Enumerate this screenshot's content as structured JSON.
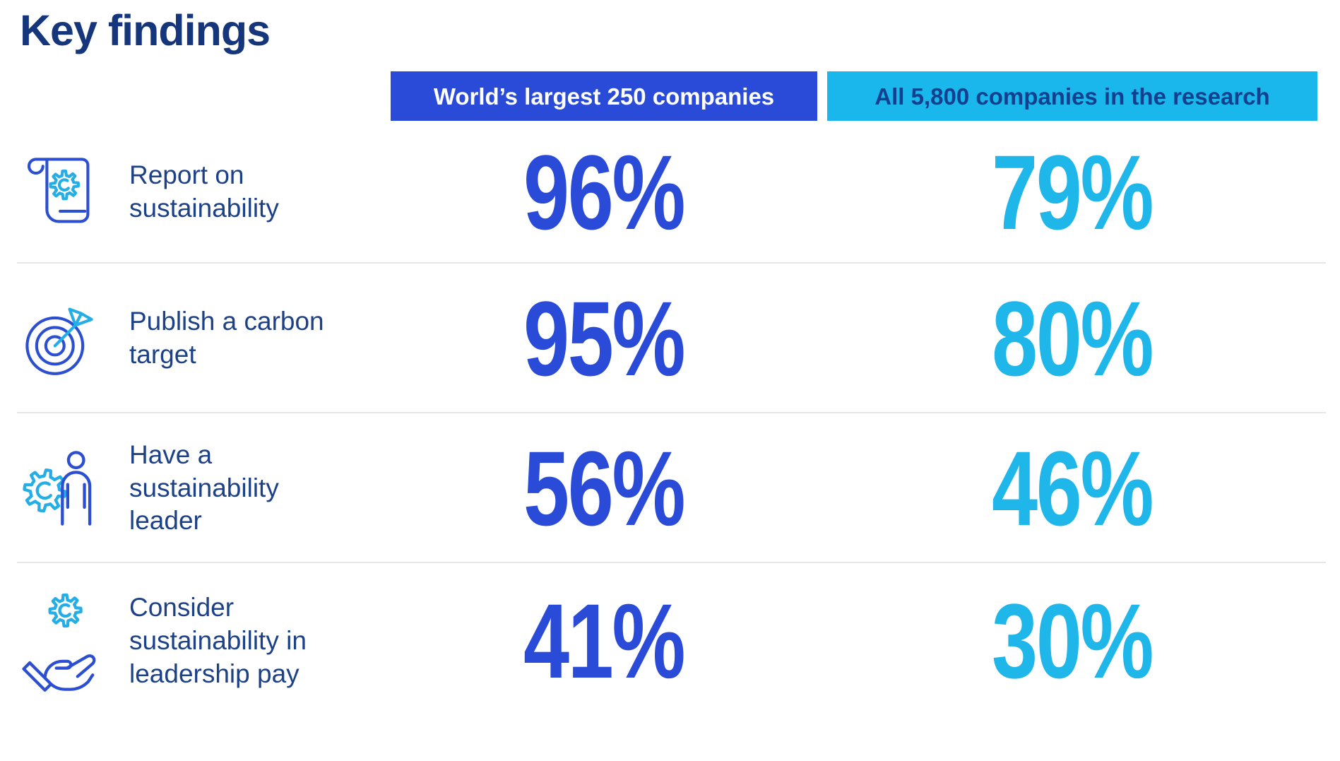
{
  "page": {
    "title": "Key findings"
  },
  "colors": {
    "brand_blue": "#2a4bd7",
    "brand_cyan": "#1ab7ec",
    "title_navy": "#16367c",
    "label_navy": "#1d4187",
    "header_cyan_text": "#123f8e",
    "number_blue": "#2a4bd7",
    "number_cyan": "#1fb6ea",
    "icon_blue": "#2b4fd0",
    "icon_cyan": "#25aee6",
    "separator": "#e8e8e8"
  },
  "columns": [
    {
      "label": "World’s largest 250 companies"
    },
    {
      "label": "All 5,800 companies in the research"
    }
  ],
  "rows": [
    {
      "icon": "scroll-gear-icon",
      "label": "Report on\nsustainability",
      "top250": "96%",
      "all5800": "79%"
    },
    {
      "icon": "target-dart-icon",
      "label": "Publish a carbon\ntarget",
      "top250": "95%",
      "all5800": "80%"
    },
    {
      "icon": "gear-person-icon",
      "label": "Have a\nsustainability\nleader",
      "top250": "56%",
      "all5800": "46%"
    },
    {
      "icon": "hand-gear-icon",
      "label": "Consider\nsustainability in\nleadership pay",
      "top250": "41%",
      "all5800": "30%"
    }
  ],
  "chart_data": {
    "type": "table",
    "title": "Key findings",
    "categories": [
      "Report on sustainability",
      "Publish a carbon target",
      "Have a sustainability leader",
      "Consider sustainability in leadership pay"
    ],
    "series": [
      {
        "name": "World’s largest 250 companies",
        "values": [
          96,
          95,
          56,
          41
        ],
        "unit": "%"
      },
      {
        "name": "All 5,800 companies in the research",
        "values": [
          79,
          80,
          46,
          30
        ],
        "unit": "%"
      }
    ],
    "legend_position": "top",
    "grid": "horizontal-separators"
  }
}
